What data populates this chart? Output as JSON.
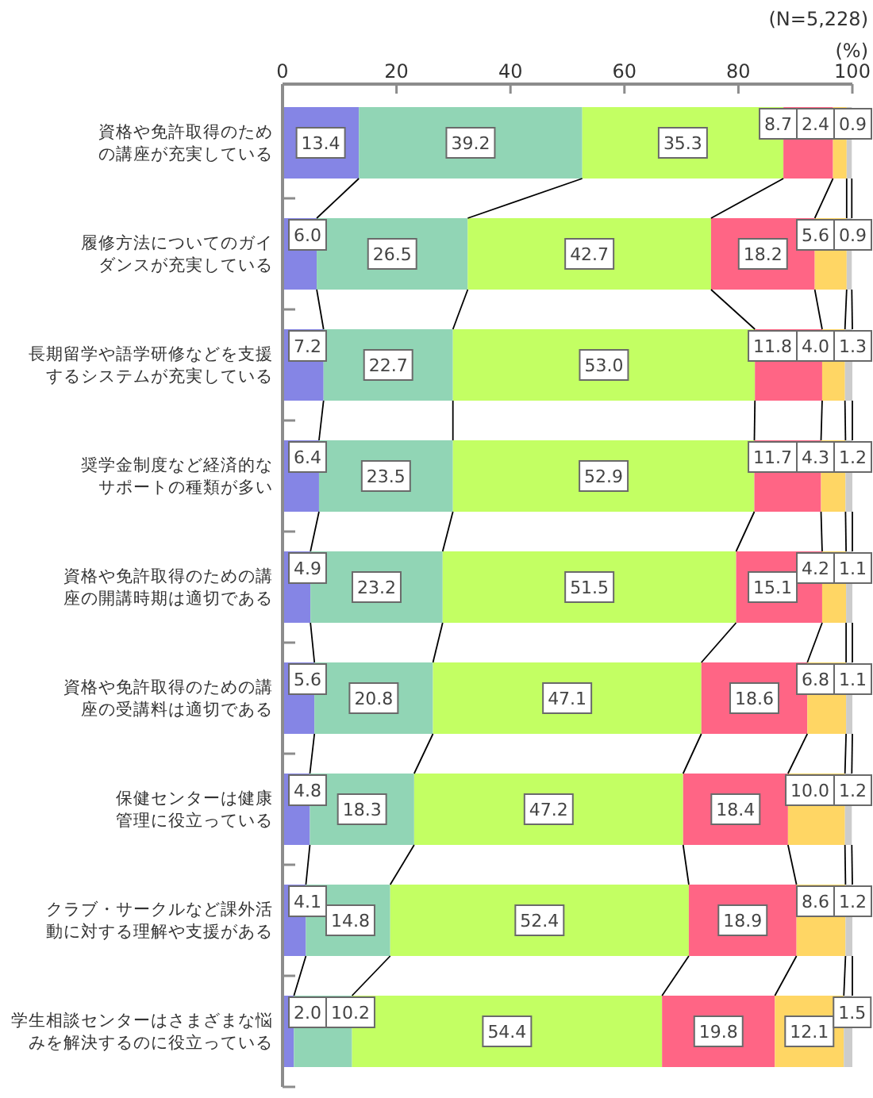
{
  "chart_data": {
    "type": "bar",
    "orientation": "horizontal",
    "stacked": true,
    "categories": [
      "資格や免許取得のための講座が充実している",
      "履修方法についてのガイダンスが充実している",
      "長期留学や語学研修などを支援するシステムが充実している",
      "奨学金制度など経済的なサポートの種類が多い",
      "資格や免許取得のための講座の開講時期は適切である",
      "資格や免許取得のための講座の受講料は適切である",
      "保健センターは健康管理に役立っている",
      "クラブ・サークルなど課外活動に対する理解や支援がある",
      "学生相談センターはさまざまな悩みを解決するのに役立っている"
    ],
    "series": [
      {
        "color": "#8585e5",
        "values": [
          13.4,
          6.0,
          7.2,
          6.4,
          4.9,
          5.6,
          4.8,
          4.1,
          2.0
        ],
        "value_labels": [
          "13.4",
          "6.0",
          "7.2",
          "6.4",
          "4.9",
          "5.6",
          "4.8",
          "4.1",
          "2.0"
        ]
      },
      {
        "color": "#91d5b5",
        "values": [
          39.2,
          26.5,
          22.7,
          23.5,
          23.2,
          20.8,
          18.3,
          14.8,
          10.2
        ],
        "value_labels": [
          "39.2",
          "26.5",
          "22.7",
          "23.5",
          "23.2",
          "20.8",
          "18.3",
          "14.8",
          "10.2"
        ]
      },
      {
        "color": "#c3ff63",
        "values": [
          35.3,
          42.7,
          53.0,
          52.9,
          51.5,
          47.1,
          47.2,
          52.4,
          54.4
        ],
        "value_labels": [
          "35.3",
          "42.7",
          "53.0",
          "52.9",
          "51.5",
          "47.1",
          "47.2",
          "52.4",
          "54.4"
        ]
      },
      {
        "color": "#ff6585",
        "values": [
          8.7,
          18.2,
          11.8,
          11.7,
          15.1,
          18.6,
          18.4,
          18.9,
          19.8
        ],
        "value_labels": [
          "8.7",
          "18.2",
          "11.8",
          "11.7",
          "15.1",
          "18.6",
          "18.4",
          "18.9",
          "19.8"
        ]
      },
      {
        "color": "#ffd664",
        "values": [
          2.4,
          5.6,
          4.0,
          4.3,
          4.2,
          6.8,
          10.0,
          8.6,
          12.1
        ],
        "value_labels": [
          "2.4",
          "5.6",
          "4.0",
          "4.3",
          "4.2",
          "6.8",
          "10.0",
          "8.6",
          "12.1"
        ]
      },
      {
        "color": "#cccccc",
        "values": [
          0.9,
          0.9,
          1.3,
          1.2,
          1.1,
          1.1,
          1.2,
          1.2,
          1.5
        ],
        "value_labels": [
          "0.9",
          "0.9",
          "1.3",
          "1.2",
          "1.1",
          "1.1",
          "1.2",
          "1.2",
          "1.5"
        ]
      }
    ],
    "xlim": [
      0,
      100
    ],
    "xticks": [
      0,
      20,
      40,
      60,
      80,
      100
    ],
    "xlabel": "(%)",
    "annotations": [
      "(N=5,228)"
    ]
  }
}
